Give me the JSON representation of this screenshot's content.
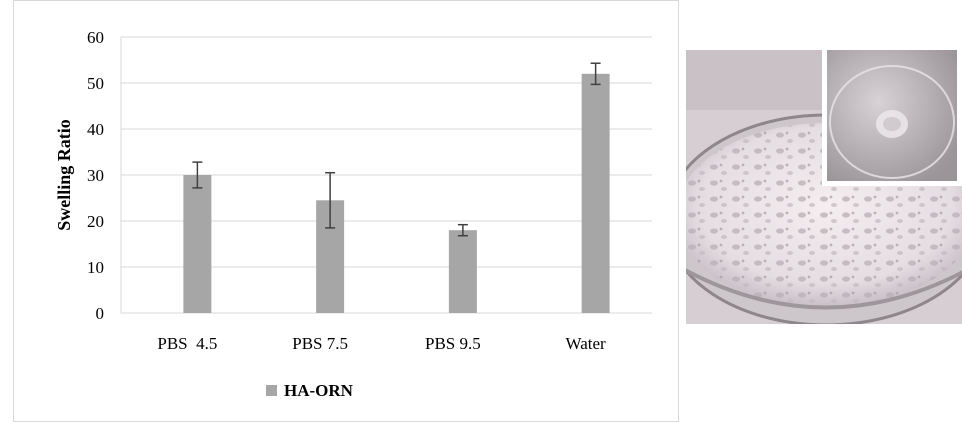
{
  "chart_data": {
    "type": "bar",
    "title": "",
    "xlabel": "",
    "ylabel": "Swelling Ratio",
    "ylim": [
      0,
      60
    ],
    "yticks": [
      0,
      10,
      20,
      30,
      40,
      50,
      60
    ],
    "grid": true,
    "legend_position": "bottom",
    "categories": [
      "PBS  4.5",
      "PBS 7.5",
      "PBS 9.5",
      "Water"
    ],
    "series": [
      {
        "name": "HA-ORN",
        "color": "#a6a6a6",
        "values": [
          30,
          24.5,
          18,
          52
        ],
        "error": [
          2.8,
          6,
          1.2,
          2.3
        ]
      }
    ]
  },
  "photo": {
    "subject": "petri-dish-foam-with-inset",
    "frame_color": "#ffffff"
  }
}
